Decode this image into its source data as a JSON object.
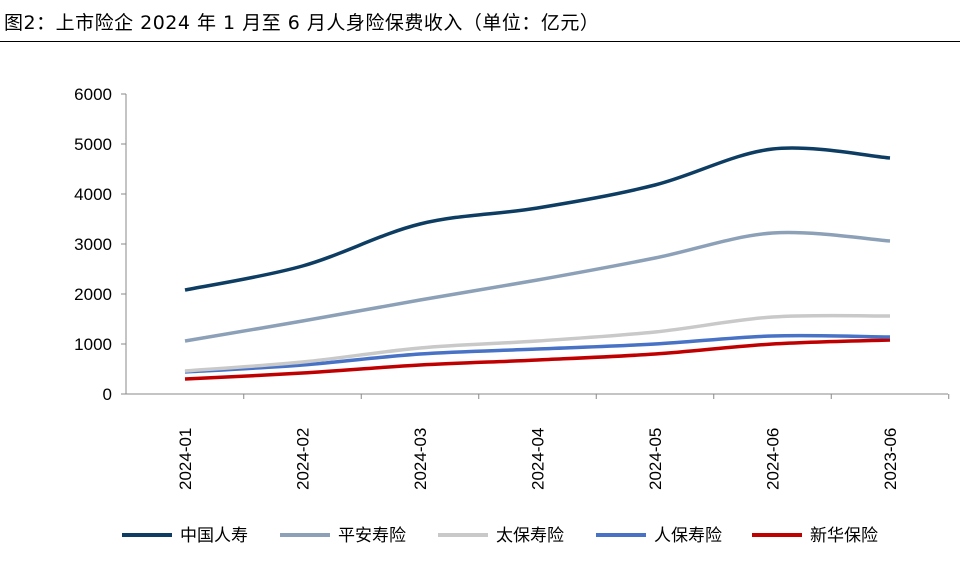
{
  "title": "图2：上市险企 2024 年 1 月至 6 月人身险保费收入（单位：亿元）",
  "chart_data": {
    "type": "line",
    "title": "图2：上市险企 2024 年 1 月至 6 月人身险保费收入（单位：亿元）",
    "categories": [
      "2024-01",
      "2024-02",
      "2024-03",
      "2024-04",
      "2024-05",
      "2024-06",
      "2023-06"
    ],
    "ylim": [
      0,
      6000
    ],
    "yticks": [
      0,
      1000,
      2000,
      3000,
      4000,
      5000,
      6000
    ],
    "grid": false,
    "legend_position": "bottom",
    "series": [
      {
        "name": "中国人寿",
        "color": "#0e3d63",
        "values": [
          2080,
          2560,
          3400,
          3720,
          4180,
          4900,
          4720
        ]
      },
      {
        "name": "平安寿险",
        "color": "#8ca1b8",
        "values": [
          1060,
          1460,
          1880,
          2280,
          2720,
          3220,
          3060
        ]
      },
      {
        "name": "太保寿险",
        "color": "#c9c9c9",
        "values": [
          460,
          640,
          920,
          1060,
          1240,
          1540,
          1560
        ]
      },
      {
        "name": "人保寿险",
        "color": "#4772c6",
        "values": [
          440,
          580,
          800,
          900,
          1000,
          1160,
          1140
        ]
      },
      {
        "name": "新华保险",
        "color": "#c00000",
        "values": [
          300,
          420,
          580,
          680,
          800,
          1000,
          1080
        ]
      }
    ]
  }
}
